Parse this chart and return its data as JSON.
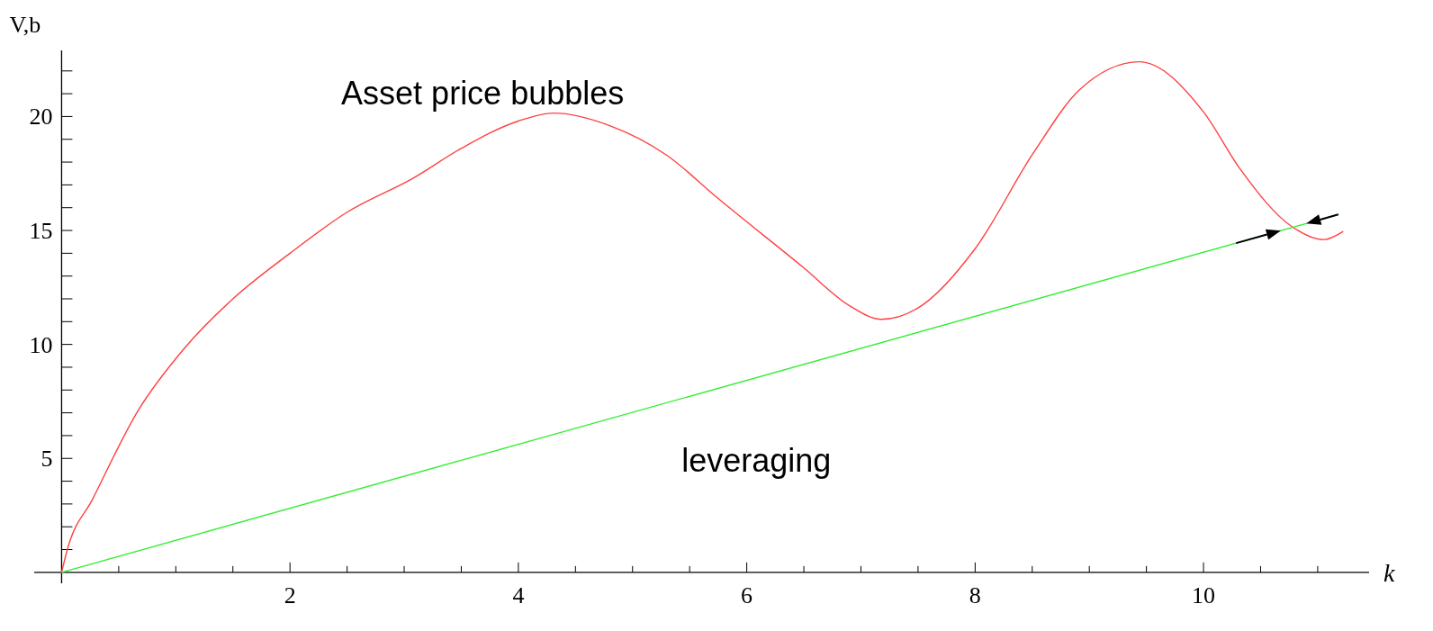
{
  "chart_data": {
    "type": "line",
    "xlabel": "k",
    "ylabel": "V,b",
    "xlim": [
      -0.24,
      11.45
    ],
    "ylim": [
      -0.48,
      22.9
    ],
    "xticks": [
      {
        "value": 0.5,
        "label": null
      },
      {
        "value": 1,
        "label": null
      },
      {
        "value": 1.5,
        "label": null
      },
      2,
      {
        "value": 2.5,
        "label": null
      },
      {
        "value": 3,
        "label": null
      },
      {
        "value": 3.5,
        "label": null
      },
      4,
      {
        "value": 4.5,
        "label": null
      },
      {
        "value": 5,
        "label": null
      },
      {
        "value": 5.5,
        "label": null
      },
      6,
      {
        "value": 6.5,
        "label": null
      },
      {
        "value": 7,
        "label": null
      },
      {
        "value": 7.5,
        "label": null
      },
      8,
      {
        "value": 8.5,
        "label": null
      },
      {
        "value": 9,
        "label": null
      },
      {
        "value": 9.5,
        "label": null
      },
      10,
      {
        "value": 10.5,
        "label": null
      },
      {
        "value": 11,
        "label": null
      }
    ],
    "yticks": [
      {
        "value": 1,
        "label": null
      },
      {
        "value": 2,
        "label": null
      },
      {
        "value": 3,
        "label": null
      },
      {
        "value": 4,
        "label": null
      },
      5,
      {
        "value": 6,
        "label": null
      },
      {
        "value": 7,
        "label": null
      },
      {
        "value": 8,
        "label": null
      },
      {
        "value": 9,
        "label": null
      },
      10,
      {
        "value": 11,
        "label": null
      },
      {
        "value": 12,
        "label": null
      },
      {
        "value": 13,
        "label": null
      },
      {
        "value": 14,
        "label": null
      },
      15,
      {
        "value": 16,
        "label": null
      },
      {
        "value": 17,
        "label": null
      },
      {
        "value": 18,
        "label": null
      },
      {
        "value": 19,
        "label": null
      },
      20,
      {
        "value": 21,
        "label": null
      },
      {
        "value": 22,
        "label": null
      }
    ],
    "grid": false,
    "legend": false,
    "marker": "none",
    "line_style": "solid",
    "series": [
      {
        "name": "Asset price bubbles",
        "color": "#ff4040",
        "x": [
          0,
          0.05,
          0.27,
          0.67,
          1.07,
          1.5,
          2,
          2.5,
          3.08,
          3.5,
          4,
          4.31,
          4.8,
          5.3,
          5.75,
          6.49,
          6.9,
          7.18,
          7.5,
          8,
          8.51,
          8.91,
          9.44,
          10,
          10.32,
          10.78,
          11.05,
          11.22
        ],
        "values": [
          0,
          1.0,
          3.2,
          7.1,
          9.8,
          12.0,
          14.0,
          15.8,
          17.3,
          18.6,
          19.8,
          20.15,
          19.6,
          18.3,
          16.4,
          13.4,
          11.7,
          11.1,
          11.6,
          14.2,
          18.4,
          21.15,
          22.4,
          20.2,
          17.7,
          15.15,
          14.6,
          14.95
        ]
      },
      {
        "name": "leveraging",
        "color": "#33ee33",
        "x": [
          0,
          11.18
        ],
        "values": [
          0,
          15.7
        ]
      }
    ]
  }
}
